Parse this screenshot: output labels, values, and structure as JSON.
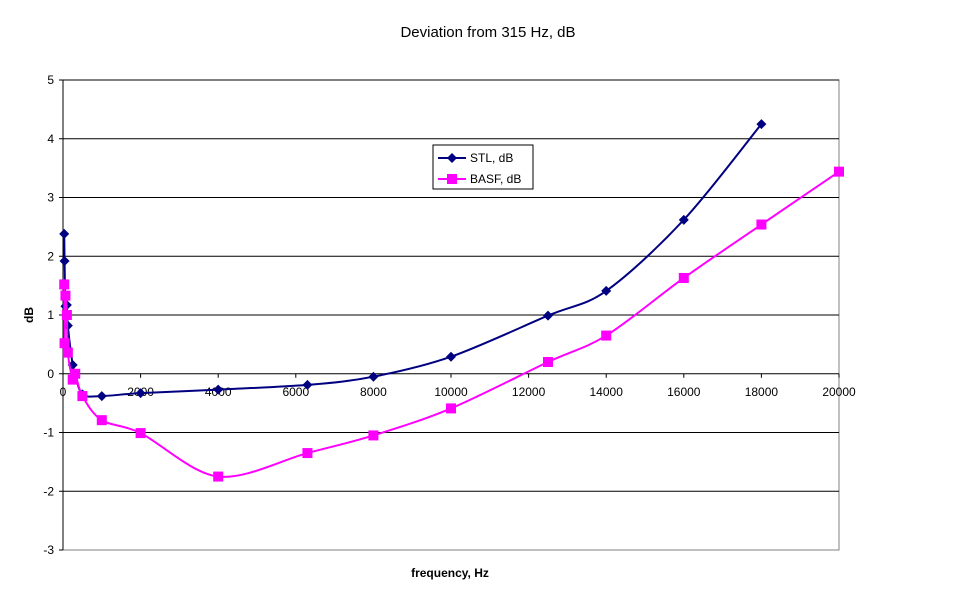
{
  "chart_data": {
    "type": "line",
    "title": "Deviation from 315 Hz, dB",
    "xlabel": "frequency, Hz",
    "ylabel": "dB",
    "xlim": [
      0,
      20000
    ],
    "ylim": [
      -3,
      5
    ],
    "x_ticks": [
      "0",
      "2000",
      "4000",
      "6000",
      "8000",
      "10000",
      "12000",
      "14000",
      "16000",
      "18000",
      "20000"
    ],
    "y_ticks": [
      "5",
      "4",
      "3",
      "2",
      "1",
      "0",
      "-1",
      "-2",
      "-3"
    ],
    "grid": "horizontal",
    "legend_position": "inside-center",
    "series": [
      {
        "name": "STL, dB",
        "color": "#000080",
        "marker": "diamond",
        "points": [
          {
            "x": 31.5,
            "y": 2.38
          },
          {
            "x": 40,
            "y": 1.92
          },
          {
            "x": 63,
            "y": 1.15
          },
          {
            "x": 100,
            "y": 1.17
          },
          {
            "x": 125,
            "y": 0.82
          },
          {
            "x": 250,
            "y": 0.15
          },
          {
            "x": 315,
            "y": 0.0
          },
          {
            "x": 500,
            "y": -0.35
          },
          {
            "x": 1000,
            "y": -0.38
          },
          {
            "x": 2000,
            "y": -0.33
          },
          {
            "x": 4000,
            "y": -0.27
          },
          {
            "x": 6300,
            "y": -0.19
          },
          {
            "x": 8000,
            "y": -0.05
          },
          {
            "x": 10000,
            "y": 0.29
          },
          {
            "x": 12500,
            "y": 0.99
          },
          {
            "x": 14000,
            "y": 1.41
          },
          {
            "x": 16000,
            "y": 2.62
          },
          {
            "x": 18000,
            "y": 4.25
          }
        ]
      },
      {
        "name": "BASF, dB",
        "color": "#FF00FF",
        "marker": "square",
        "points": [
          {
            "x": 31.5,
            "y": 1.52
          },
          {
            "x": 40,
            "y": 0.52
          },
          {
            "x": 63,
            "y": 1.33
          },
          {
            "x": 100,
            "y": 1.0
          },
          {
            "x": 125,
            "y": 0.36
          },
          {
            "x": 250,
            "y": -0.1
          },
          {
            "x": 315,
            "y": 0.0
          },
          {
            "x": 500,
            "y": -0.38
          },
          {
            "x": 1000,
            "y": -0.79
          },
          {
            "x": 2000,
            "y": -1.01
          },
          {
            "x": 4000,
            "y": -1.75
          },
          {
            "x": 6300,
            "y": -1.35
          },
          {
            "x": 8000,
            "y": -1.05
          },
          {
            "x": 10000,
            "y": -0.59
          },
          {
            "x": 12500,
            "y": 0.2
          },
          {
            "x": 14000,
            "y": 0.65
          },
          {
            "x": 16000,
            "y": 1.63
          },
          {
            "x": 18000,
            "y": 2.54
          },
          {
            "x": 20000,
            "y": 3.44
          }
        ]
      }
    ]
  }
}
